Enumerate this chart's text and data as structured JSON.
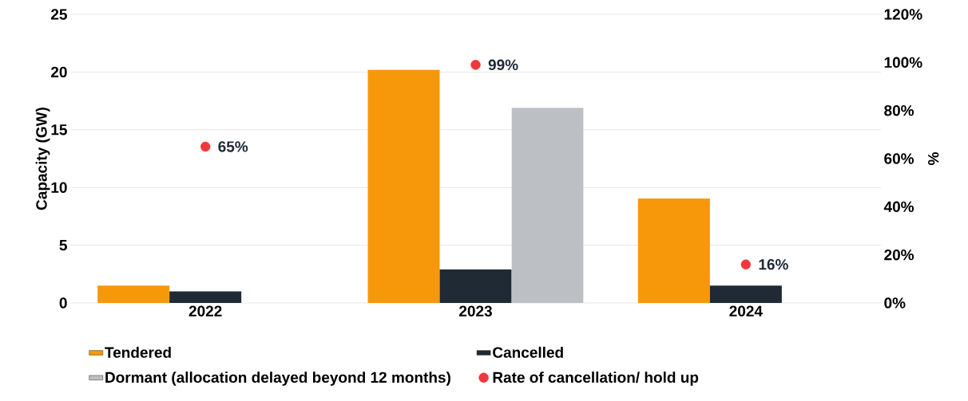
{
  "chart_data": {
    "type": "bar",
    "categories": [
      "2022",
      "2023",
      "2024"
    ],
    "ylabel": "Capacity (GW)",
    "y2label": "%",
    "ylim": [
      0,
      25
    ],
    "yticks": [
      0,
      5,
      10,
      15,
      20,
      25
    ],
    "y2lim": [
      0,
      120
    ],
    "y2ticks": [
      {
        "value": 0,
        "label": "0%"
      },
      {
        "value": 20,
        "label": "20%"
      },
      {
        "value": 40,
        "label": "40%"
      },
      {
        "value": 60,
        "label": "60%"
      },
      {
        "value": 80,
        "label": "80%"
      },
      {
        "value": 100,
        "label": "100%"
      },
      {
        "value": 120,
        "label": "120%"
      }
    ],
    "grid": "y",
    "legend": "bottom",
    "series": [
      {
        "name": "Tendered",
        "color": "#f7980a",
        "values": [
          1.5,
          20.2,
          9.05
        ]
      },
      {
        "name": "Cancelled",
        "color": "#1f2a35",
        "values": [
          1.0,
          2.9,
          1.5
        ]
      },
      {
        "name": "Dormant (allocation delayed beyond 12 months)",
        "color": "#bcbfc4",
        "values": [
          null,
          16.9,
          null
        ]
      },
      {
        "name": "Rate of cancellation/ hold up",
        "type": "scatter",
        "axis": "y2",
        "marker": "circle",
        "color": "#f0393c",
        "values": [
          65,
          99,
          16
        ],
        "value_labels": [
          "65%",
          "99%",
          "16%"
        ]
      }
    ]
  }
}
